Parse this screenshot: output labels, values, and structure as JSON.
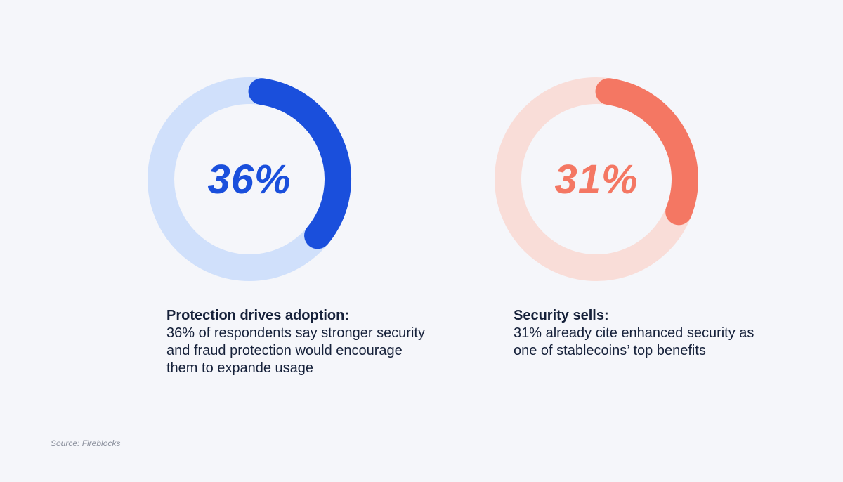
{
  "colors": {
    "background": "#f5f6fa",
    "text": "#16213a",
    "source_text": "#8a8f9c"
  },
  "chart_data": [
    {
      "type": "pie",
      "value": 36,
      "unit": "%",
      "value_label": "36%",
      "title": "Protection drives adoption:",
      "description": "36% of respondents say stronger security and fraud protection would encourage them to expande usage",
      "colors": {
        "arc": "#1a4fdc",
        "track": "#d0e0fb"
      }
    },
    {
      "type": "pie",
      "value": 31,
      "unit": "%",
      "value_label": "31%",
      "title": "Security sells:",
      "description": "31% already cite enhanced security as one of stablecoins’ top benefits",
      "colors": {
        "arc": "#f47763",
        "track": "#f9ddd8"
      }
    }
  ],
  "source": "Source: Fireblocks"
}
